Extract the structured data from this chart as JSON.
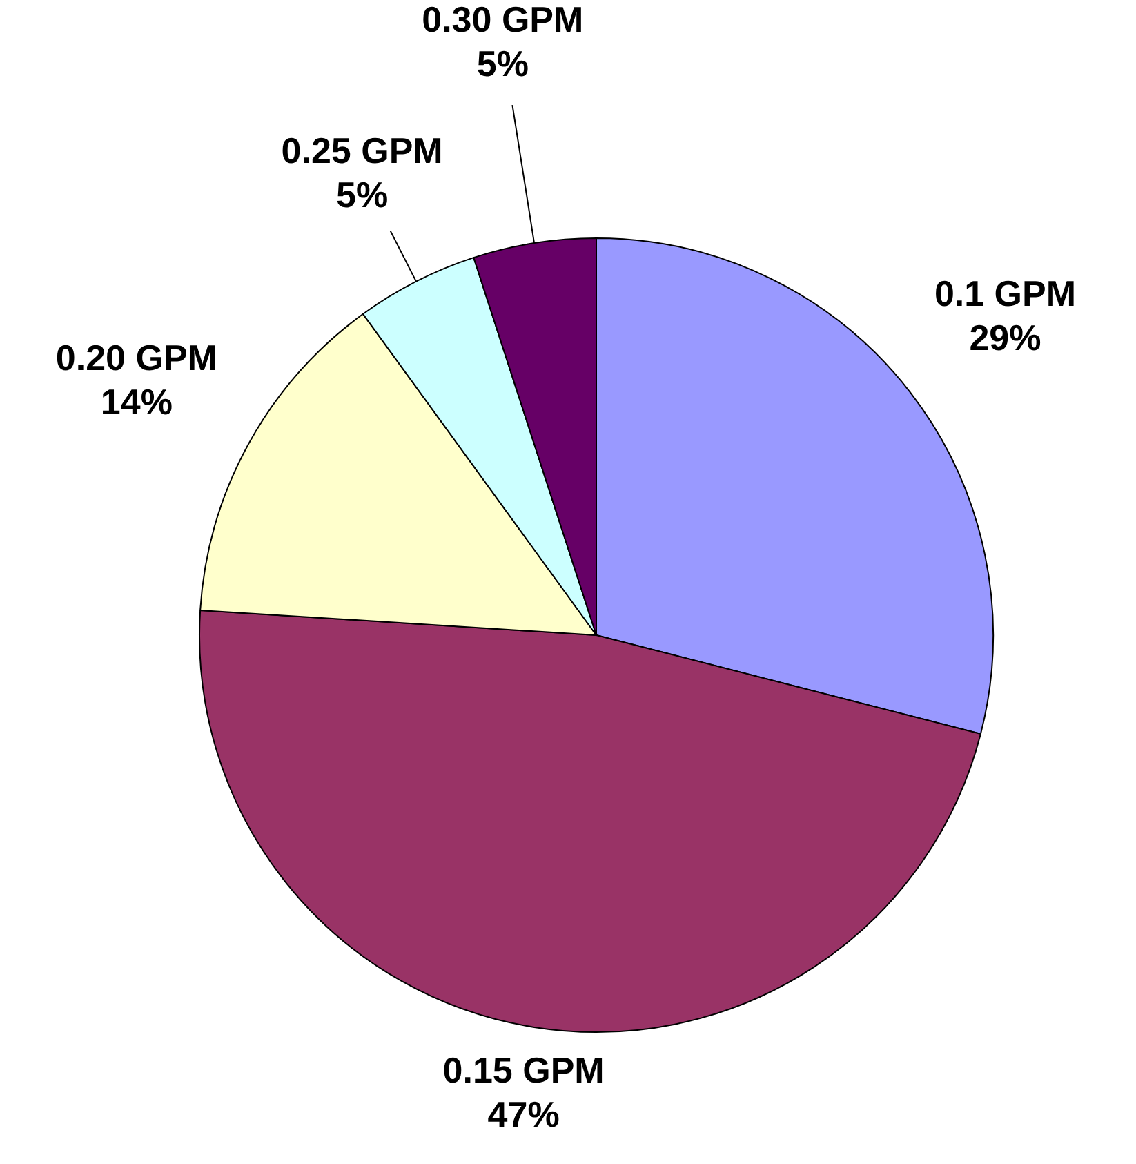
{
  "chart_data": {
    "type": "pie",
    "categories": [
      "0.1 GPM",
      "0.15 GPM",
      "0.20 GPM",
      "0.25 GPM",
      "0.30 GPM"
    ],
    "values": [
      29,
      47,
      14,
      5,
      5
    ],
    "colors": [
      "#9999ff",
      "#993366",
      "#ffffcc",
      "#ccffff",
      "#660066"
    ],
    "value_labels": [
      "29%",
      "47%",
      "14%",
      "5%",
      "5%"
    ],
    "legend": false
  }
}
